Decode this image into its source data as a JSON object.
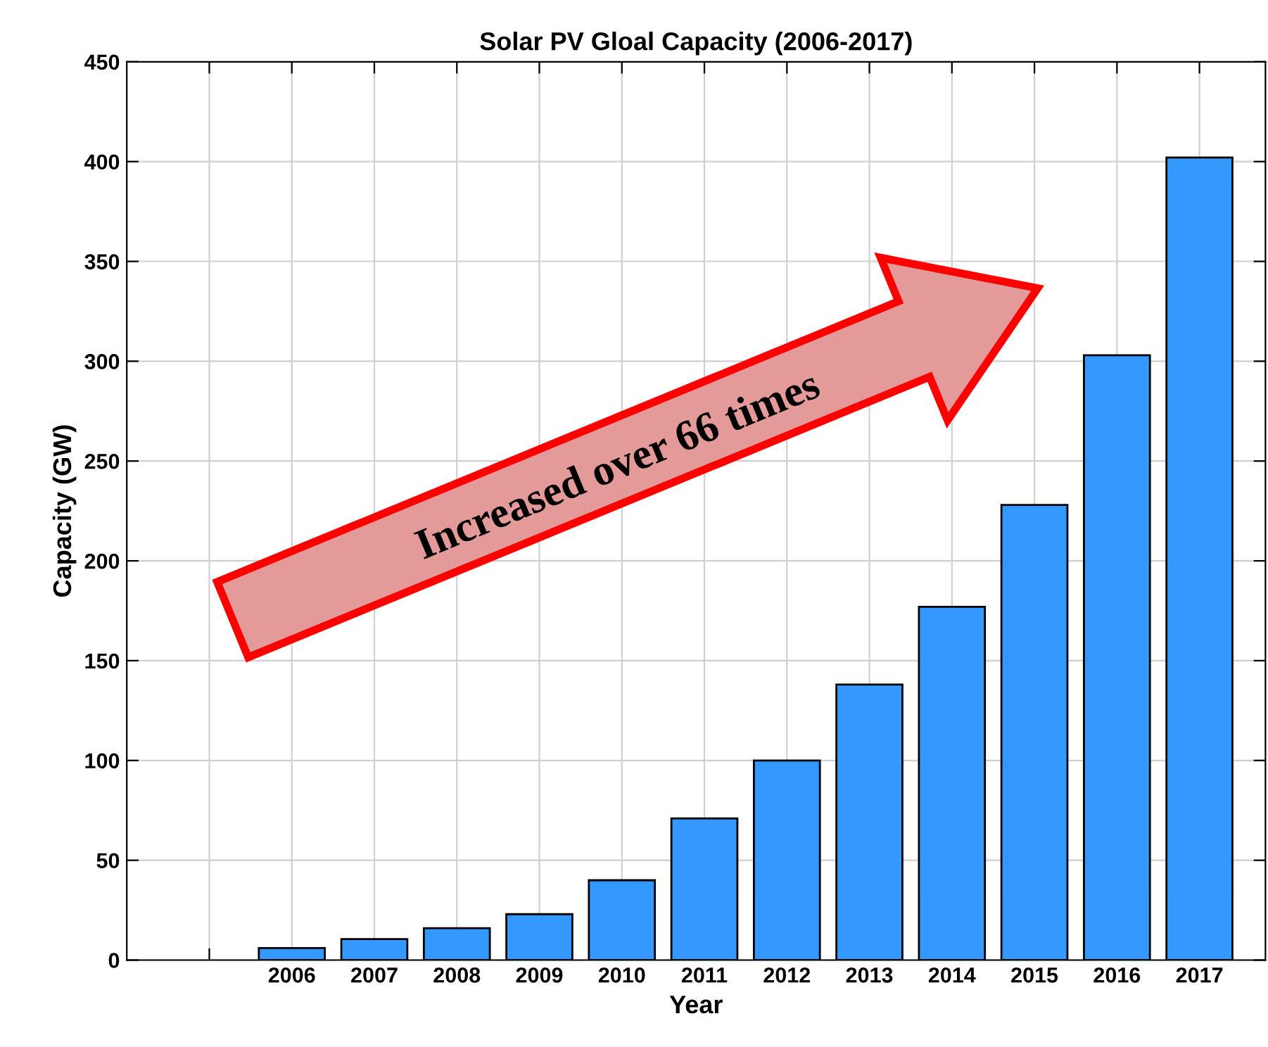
{
  "chart_data": {
    "type": "bar",
    "title": "Solar PV Gloal Capacity (2006-2017)",
    "xlabel": "Year",
    "ylabel": "Capacity (GW)",
    "categories": [
      null,
      "2006",
      "2007",
      "2008",
      "2009",
      "2010",
      "2011",
      "2012",
      "2013",
      "2014",
      "2015",
      "2016",
      "2017"
    ],
    "values": [
      null,
      6,
      10.5,
      16,
      23,
      40,
      71,
      100,
      138,
      177,
      228,
      303,
      402
    ],
    "color": "#3399ff",
    "ylim": [
      0,
      450
    ],
    "yticks": [
      0,
      50,
      100,
      150,
      200,
      250,
      300,
      350,
      400,
      450
    ],
    "grid": true,
    "annotations": [
      "Increased over 66 times"
    ]
  }
}
